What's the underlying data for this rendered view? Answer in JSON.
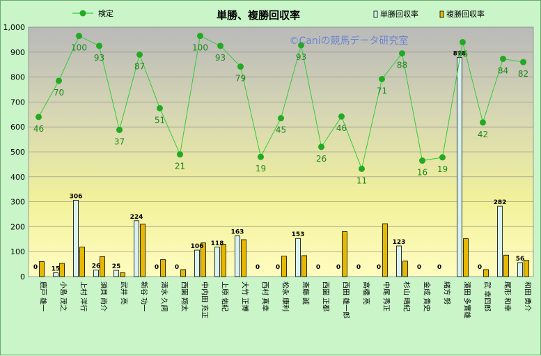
{
  "chart_data": {
    "type": "bar",
    "title": "単勝、複勝回収率",
    "watermark": "©Caniの競馬データ研究室",
    "ylim": [
      0,
      1000
    ],
    "yticks": [
      "0",
      "100",
      "200",
      "300",
      "400",
      "500",
      "600",
      "700",
      "800",
      "900",
      "1,000"
    ],
    "grid": true,
    "legend_position": "top",
    "categories": [
      "鹿戸 雄一",
      "小島 茂之",
      "上村 洋行",
      "須貝 尚介",
      "武井 亮",
      "新谷 功一",
      "清水 久詞",
      "西園 翔太",
      "中内田 充正",
      "上原 佑紀",
      "大竹 正博",
      "西村 真幸",
      "松永 康利",
      "斎藤 誠",
      "西園 正都",
      "西田 雄一郎",
      "高橋 亮",
      "中尾 秀正",
      "杉山 晴紀",
      "金成 貴史",
      "緒方 努",
      "濱田 多實雄",
      "武 幸四郎",
      "尾形 和幸",
      "和田 勇介"
    ],
    "series": [
      {
        "name": "単勝回収率",
        "type": "bar",
        "color": "#d9f2f2",
        "values": [
          0,
          15,
          306,
          26,
          25,
          224,
          0,
          0,
          106,
          118,
          163,
          0,
          0,
          153,
          0,
          0,
          0,
          0,
          123,
          0,
          0,
          878,
          0,
          282,
          56
        ],
        "labels": [
          "0",
          "15",
          "306",
          "26",
          "25",
          "224",
          "0",
          "0",
          "106",
          "118",
          "163",
          "0",
          "0",
          "153",
          "0",
          "0",
          "0",
          "0",
          "123",
          "0",
          "0",
          "878",
          "0",
          "282",
          "56"
        ]
      },
      {
        "name": "複勝回収率",
        "type": "bar",
        "color": "#e6b800",
        "values": [
          60,
          53,
          118,
          80,
          15,
          210,
          68,
          28,
          135,
          130,
          148,
          0,
          82,
          84,
          0,
          180,
          0,
          212,
          62,
          0,
          0,
          152,
          28,
          86,
          65
        ]
      },
      {
        "name": "検定",
        "type": "line",
        "color": "#33cc33",
        "values": [
          46,
          70,
          100,
          93,
          37,
          87,
          51,
          21,
          100,
          93,
          79,
          19,
          45,
          93,
          26,
          46,
          11,
          71,
          88,
          16,
          19,
          96,
          42,
          84,
          82
        ],
        "plot_values": [
          640,
          785,
          965,
          925,
          588,
          890,
          675,
          490,
          965,
          925,
          842,
          480,
          635,
          928,
          520,
          642,
          432,
          792,
          895,
          465,
          478,
          940,
          618,
          873,
          860
        ]
      }
    ]
  }
}
